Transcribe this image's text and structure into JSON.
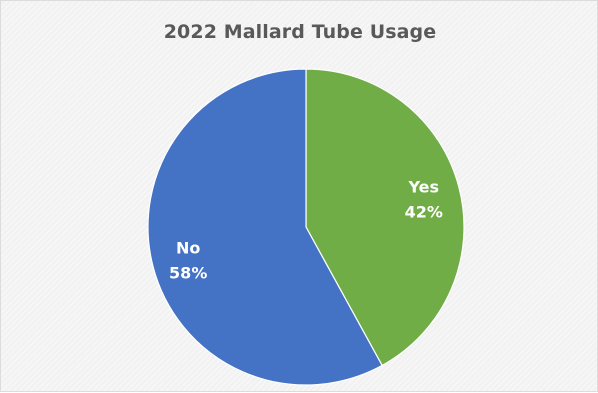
{
  "chart_data": {
    "type": "pie",
    "title": "2022 Mallard Tube Usage",
    "slices": [
      {
        "label": "Yes",
        "value": 42,
        "value_label": "42%",
        "color": "#70ad47"
      },
      {
        "label": "No",
        "value": 58,
        "value_label": "58%",
        "color": "#4472c4"
      }
    ],
    "start_angle_deg": 0,
    "direction": "clockwise",
    "legend": "none",
    "data_labels": "inside"
  }
}
